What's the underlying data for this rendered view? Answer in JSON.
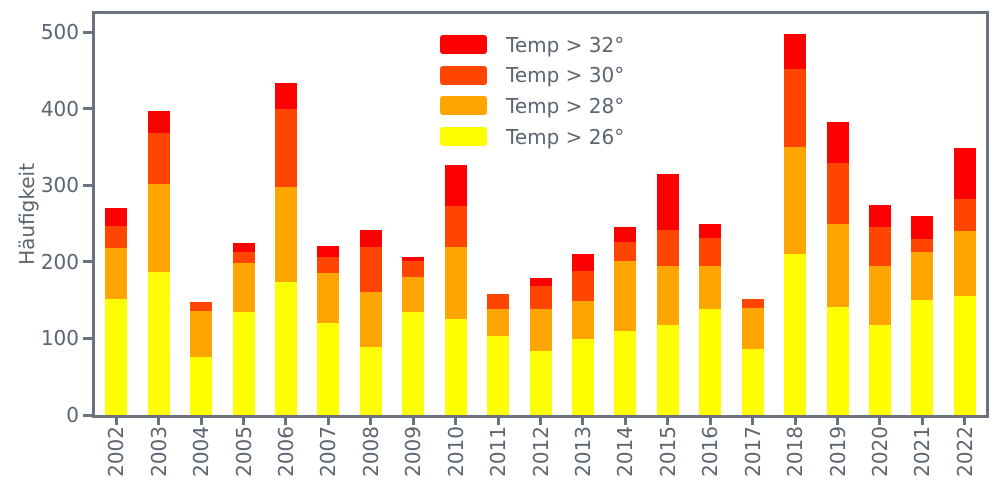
{
  "figure": {
    "background": "#ffffff",
    "axis_color": "#6b717d",
    "text_color": "#5d6571"
  },
  "legend": {
    "items": [
      {
        "label": "Temp > 32°",
        "color": "#ff0000"
      },
      {
        "label": "Temp > 30°",
        "color": "#ff4500"
      },
      {
        "label": "Temp > 28°",
        "color": "#ffa500"
      },
      {
        "label": "Temp > 26°",
        "color": "#ffff00"
      }
    ]
  },
  "chart_data": {
    "type": "bar",
    "stacked": true,
    "title": "",
    "xlabel": "",
    "ylabel": "Häufigkeit",
    "ylim": [
      0,
      523
    ],
    "yticks": [
      "0",
      "100",
      "200",
      "300",
      "400",
      "500"
    ],
    "grid": false,
    "legend_position": "upper center inside",
    "categories": [
      "2002",
      "2003",
      "2004",
      "2005",
      "2006",
      "2007",
      "2008",
      "2009",
      "2010",
      "2011",
      "2012",
      "2013",
      "2014",
      "2015",
      "2016",
      "2017",
      "2018",
      "2019",
      "2020",
      "2021",
      "2022"
    ],
    "series": [
      {
        "name": "Temp > 26°",
        "color": "#ffff00",
        "values": [
          151,
          187,
          76,
          134,
          173,
          120,
          89,
          134,
          125,
          103,
          83,
          99,
          110,
          118,
          139,
          86,
          210,
          141,
          117,
          150,
          155
        ]
      },
      {
        "name": "Temp > 28°",
        "color": "#ffa500",
        "values": [
          67,
          115,
          60,
          65,
          125,
          66,
          72,
          46,
          94,
          35,
          55,
          50,
          91,
          77,
          56,
          54,
          140,
          108,
          78,
          63,
          85
        ]
      },
      {
        "name": "Temp > 30°",
        "color": "#ff4500",
        "values": [
          29,
          66,
          12,
          14,
          101,
          20,
          58,
          21,
          54,
          20,
          31,
          39,
          25,
          46,
          36,
          12,
          102,
          80,
          50,
          17,
          42
        ]
      },
      {
        "name": "Temp > 32°",
        "color": "#ff0000",
        "values": [
          23,
          29,
          0,
          12,
          34,
          15,
          23,
          5,
          53,
          0,
          10,
          22,
          19,
          73,
          18,
          0,
          45,
          54,
          29,
          30,
          66
        ]
      }
    ],
    "totals": [
      270,
      397,
      148,
      225,
      433,
      221,
      242,
      206,
      326,
      158,
      179,
      210,
      245,
      314,
      249,
      152,
      497,
      383,
      274,
      260,
      348
    ]
  }
}
